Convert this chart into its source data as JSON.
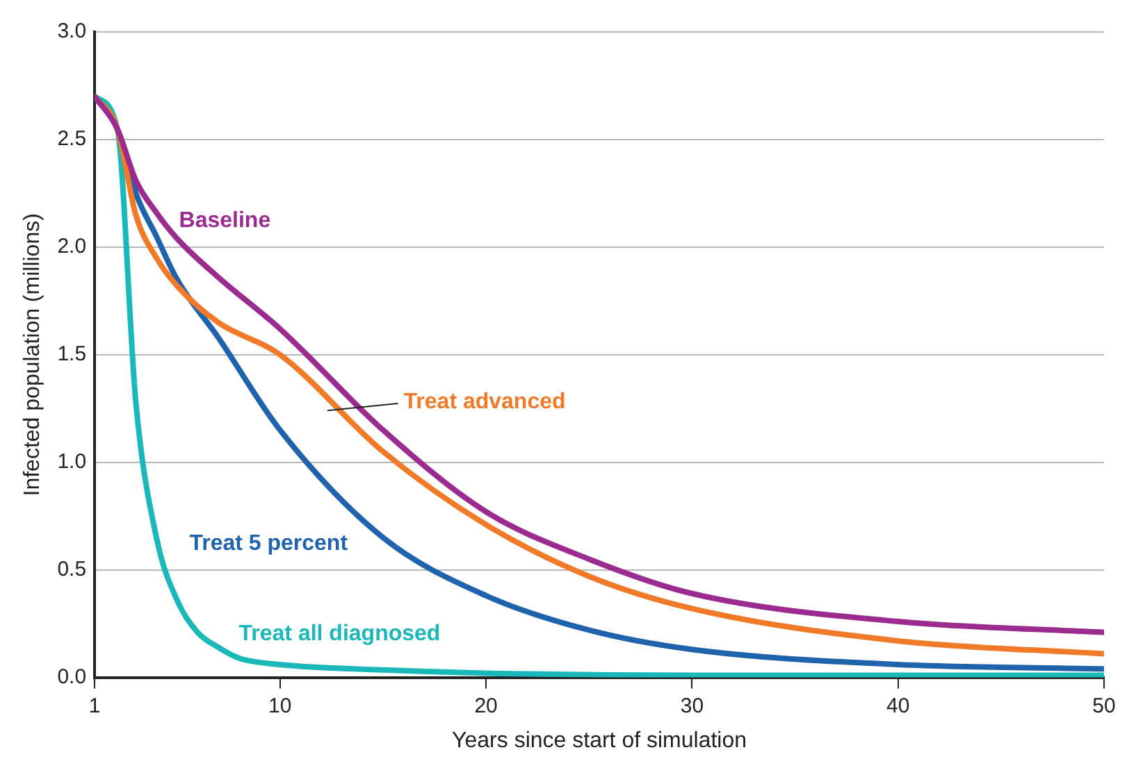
{
  "chart_data": {
    "type": "line",
    "xlabel": "Years since start of simulation",
    "ylabel": "Infected population (millions)",
    "xlim": [
      1,
      50
    ],
    "xticks": [
      1,
      10,
      20,
      30,
      40,
      50
    ],
    "ylim": [
      0,
      3
    ],
    "yticks": [
      {
        "value": 0,
        "label": "0.0"
      },
      {
        "value": 0.5,
        "label": "0.5"
      },
      {
        "value": 1,
        "label": "1.0"
      },
      {
        "value": 1.5,
        "label": "1.5"
      },
      {
        "value": 2,
        "label": "2.0"
      },
      {
        "value": 2.5,
        "label": "2.5"
      },
      {
        "value": 3,
        "label": "3.0"
      }
    ],
    "grid": "y",
    "legend": false,
    "marker": "none",
    "line_style": "solid",
    "series": [
      {
        "name": "Baseline",
        "color": "#9b2b8e",
        "x": [
          1,
          2.1,
          3,
          4,
          5,
          7,
          10,
          15,
          20,
          25,
          30,
          40,
          50
        ],
        "values": [
          2.7,
          2.55,
          2.31,
          2.16,
          2.04,
          1.86,
          1.62,
          1.15,
          0.77,
          0.55,
          0.39,
          0.26,
          0.21
        ]
      },
      {
        "name": "Treat advanced",
        "color": "#f07a28",
        "x": [
          1,
          2.1,
          3,
          4,
          5,
          7,
          10,
          15,
          20,
          25,
          30,
          40,
          50
        ],
        "values": [
          2.7,
          2.55,
          2.15,
          1.95,
          1.82,
          1.65,
          1.5,
          1.05,
          0.71,
          0.47,
          0.32,
          0.17,
          0.11
        ]
      },
      {
        "name": "Treat 5 percent",
        "color": "#1f63ad",
        "x": [
          1,
          2.1,
          3,
          4,
          5,
          7,
          10,
          15,
          20,
          25,
          30,
          40,
          50
        ],
        "values": [
          2.7,
          2.55,
          2.25,
          2.05,
          1.85,
          1.58,
          1.15,
          0.65,
          0.38,
          0.22,
          0.13,
          0.06,
          0.04
        ]
      },
      {
        "name": "Treat all diagnosed",
        "color": "#1ab8b8",
        "x": [
          1,
          2.1,
          3,
          4,
          5,
          6,
          7,
          8,
          10,
          15,
          20,
          30,
          50
        ],
        "values": [
          2.7,
          2.55,
          1.28,
          0.65,
          0.36,
          0.21,
          0.14,
          0.09,
          0.06,
          0.035,
          0.02,
          0.01,
          0.01
        ]
      }
    ]
  }
}
